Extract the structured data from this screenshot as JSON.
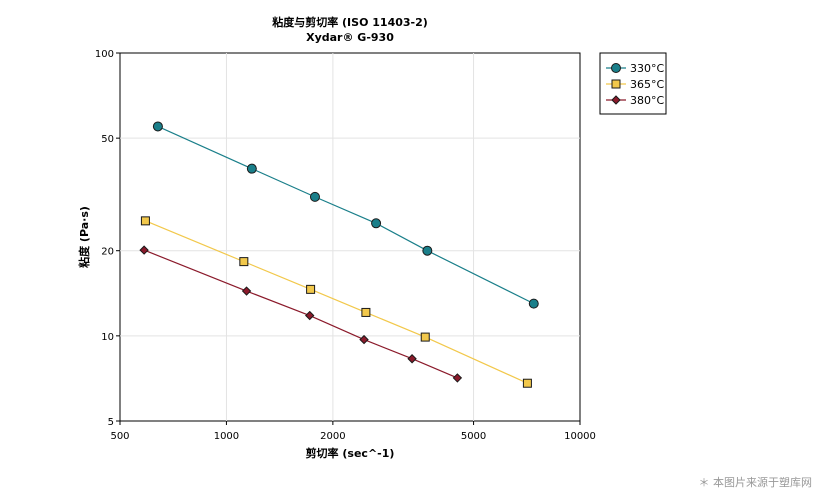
{
  "chart_data": {
    "type": "scatter",
    "title": "粘度与剪切率 (ISO 11403-2)",
    "subtitle": "Xydar® G-930",
    "xlabel": "剪切率 (sec^-1)",
    "ylabel": "粘度 (Pa·s)",
    "x_scale": "log",
    "y_scale": "log",
    "xlim": [
      500,
      10000
    ],
    "ylim": [
      5,
      100
    ],
    "x_ticks": [
      500,
      1000,
      2000,
      5000,
      10000
    ],
    "x_tick_labels": [
      "500",
      "1000",
      "2000",
      "5000",
      "10000"
    ],
    "y_ticks": [
      5,
      10,
      20,
      50,
      100
    ],
    "y_tick_labels": [
      "5",
      "10",
      "20",
      "50",
      "100"
    ],
    "grid": true,
    "legend_position": "right-top",
    "series": [
      {
        "name": "330°C",
        "color": "#1a7f8a",
        "marker": "circle",
        "x": [
          640,
          1180,
          1780,
          2650,
          3700,
          7400
        ],
        "y": [
          55,
          39,
          31,
          25,
          20,
          13
        ]
      },
      {
        "name": "365°C",
        "color": "#f2c84b",
        "marker": "square",
        "x": [
          590,
          1120,
          1730,
          2480,
          3650,
          7100
        ],
        "y": [
          25.5,
          18.3,
          14.6,
          12.1,
          9.9,
          6.8
        ]
      },
      {
        "name": "380°C",
        "color": "#8b1a2b",
        "marker": "diamond",
        "x": [
          585,
          1140,
          1720,
          2450,
          3350,
          4500
        ],
        "y": [
          20.1,
          14.4,
          11.8,
          9.7,
          8.3,
          7.1
        ]
      }
    ]
  },
  "watermark": "＊ 本图片来源于塑库网"
}
